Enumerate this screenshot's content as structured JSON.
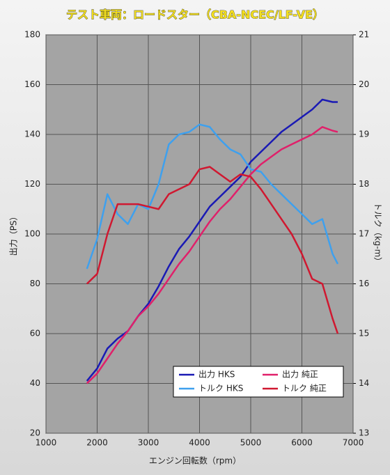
{
  "chart_data": {
    "type": "line",
    "title": "テスト車両：ロードスター（CBA-NCEC/LF-VE）",
    "x_label": "エンジン回転数（rpm）",
    "y_label": "出力（PS）",
    "y2_label": "トルク（kg-m）",
    "x": [
      1800,
      2000,
      2200,
      2400,
      2600,
      2800,
      3000,
      3200,
      3400,
      3600,
      3800,
      4000,
      4200,
      4400,
      4600,
      4800,
      5000,
      5200,
      5400,
      5600,
      5800,
      6000,
      6200,
      6400,
      6600,
      6700
    ],
    "series": [
      {
        "name": "出力 HKS",
        "color": "#1a1ab4",
        "values": [
          41,
          46,
          54,
          58,
          61,
          67,
          72,
          79,
          87,
          94,
          99,
          105,
          111,
          115,
          119,
          123,
          129,
          133,
          137,
          141,
          144,
          147,
          150,
          154,
          153,
          153
        ]
      },
      {
        "name": "トルク HKS",
        "color": "#3ea0ee",
        "axis": "y2",
        "values": [
          16.3,
          16.9,
          17.8,
          17.4,
          17.2,
          17.6,
          17.5,
          18.0,
          18.8,
          19.0,
          19.05,
          19.2,
          19.15,
          18.9,
          18.7,
          18.6,
          18.3,
          18.25,
          18.0,
          17.8,
          17.6,
          17.4,
          17.2,
          17.3,
          16.6,
          16.4
        ]
      },
      {
        "name": "出力 純正",
        "color": "#e0206a",
        "values": [
          40,
          44,
          50,
          56,
          61,
          67,
          71,
          76,
          82,
          88,
          93,
          99,
          105,
          110,
          114,
          119,
          124,
          128,
          131,
          134,
          136,
          138,
          140,
          143,
          141.5,
          141
        ]
      },
      {
        "name": "トルク 純正",
        "color": "#d01830",
        "axis": "y2",
        "values": [
          16.0,
          16.2,
          17.0,
          17.6,
          17.6,
          17.6,
          17.55,
          17.5,
          17.8,
          17.9,
          18.0,
          18.3,
          18.35,
          18.2,
          18.05,
          18.2,
          18.15,
          17.9,
          17.6,
          17.3,
          17.0,
          16.6,
          16.1,
          16.0,
          15.3,
          15.0
        ]
      }
    ],
    "xlim": [
      1000,
      7000
    ],
    "xticks": [
      1000,
      2000,
      3000,
      4000,
      5000,
      6000,
      7000
    ],
    "ylim": [
      20,
      180
    ],
    "yticks": [
      20,
      40,
      60,
      80,
      100,
      120,
      140,
      160,
      180
    ],
    "y2lim": [
      13,
      21
    ],
    "y2ticks": [
      13,
      14,
      15,
      16,
      17,
      18,
      19,
      20,
      21
    ],
    "grid": true,
    "legend": "lower right"
  }
}
